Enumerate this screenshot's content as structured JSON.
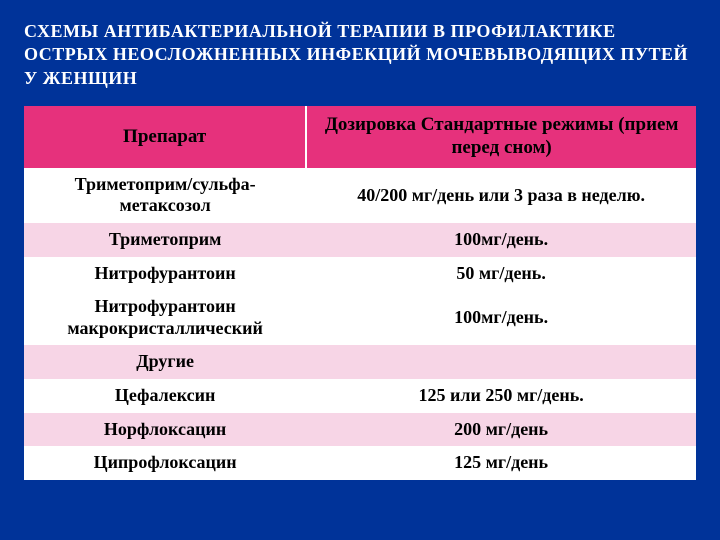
{
  "slide": {
    "title": "СХЕМЫ АНТИБАКТЕРИАЛЬНОЙ ТЕРАПИИ В ПРОФИЛАКТИКЕ ОСТРЫХ НЕОСЛОЖНЕННЫХ ИНФЕКЦИЙ МОЧЕВЫВОДЯЩИХ ПУТЕЙ У ЖЕНЩИН",
    "background_color": "#003399",
    "title_color": "#ffffff",
    "title_fontsize": 18
  },
  "table": {
    "type": "table",
    "header_bg": "#e6317c",
    "header_fg": "#000000",
    "alt_row_bg": "#f7d5e6",
    "plain_row_bg": "#ffffff",
    "cell_fontsize": 18,
    "columns": [
      {
        "label": "Препарат",
        "width_pct": 42
      },
      {
        "label": "Дозировка\nСтандартные режимы (прием перед сном)",
        "width_pct": 58
      }
    ],
    "rows": [
      {
        "drug": "Триметоприм/сульфа-метаксозол",
        "dose": "40/200 мг/день или 3 раза в неделю.",
        "alt": false
      },
      {
        "drug": "Триметоприм",
        "dose": "100мг/день.",
        "alt": true
      },
      {
        "drug": "Нитрофурантоин",
        "dose": "50 мг/день.",
        "alt": false
      },
      {
        "drug": "Нитрофурантоин макрокристаллический",
        "dose": "100мг/день.",
        "alt": false
      },
      {
        "drug": "Другие",
        "dose": "",
        "alt": true
      },
      {
        "drug": "Цефалексин",
        "dose": "125 или 250 мг/день.",
        "alt": false
      },
      {
        "drug": "Норфлоксацин",
        "dose": "200 мг/день",
        "alt": true
      },
      {
        "drug": "Ципрофлоксацин",
        "dose": "125 мг/день",
        "alt": false
      }
    ]
  }
}
